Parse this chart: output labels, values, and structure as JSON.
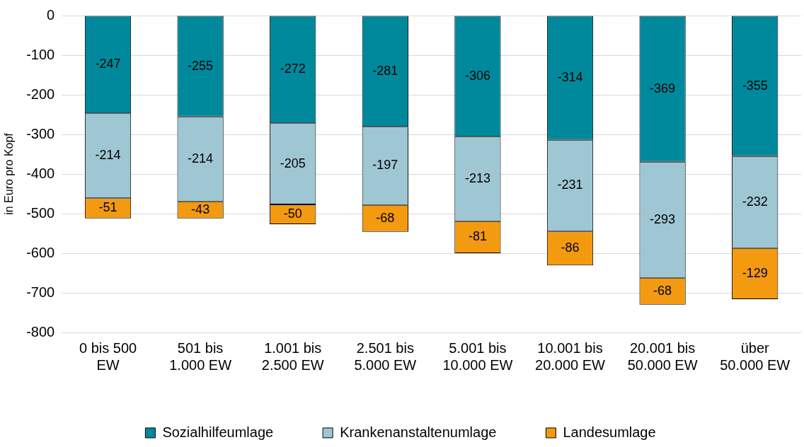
{
  "chart_data": {
    "type": "bar",
    "stacked": true,
    "ylabel": "in Euro pro Kopf",
    "categories": [
      "0 bis 500\nEW",
      "501 bis\n1.000 EW",
      "1.001 bis\n2.500 EW",
      "2.501 bis\n5.000 EW",
      "5.001 bis\n10.000 EW",
      "10.001 bis\n20.000 EW",
      "20.001 bis\n50.000 EW",
      "über\n50.000 EW"
    ],
    "series": [
      {
        "name": "Sozialhilfeumlage",
        "color": "#00899c",
        "values": [
          -247,
          -255,
          -272,
          -281,
          -306,
          -314,
          -369,
          -355
        ]
      },
      {
        "name": "Krankenanstaltenumlage",
        "color": "#9fc6d3",
        "values": [
          -214,
          -214,
          -205,
          -197,
          -213,
          -231,
          -293,
          -232
        ]
      },
      {
        "name": "Landesumlage",
        "color": "#f39a10",
        "values": [
          -51,
          -43,
          -50,
          -68,
          -81,
          -86,
          -68,
          -129
        ]
      }
    ],
    "ylim": [
      -800,
      0
    ],
    "yticks": [
      -800,
      -700,
      -600,
      -500,
      -400,
      -300,
      -200,
      -100,
      0
    ],
    "grid": "y",
    "legend": "bottom",
    "data_labels": true
  }
}
